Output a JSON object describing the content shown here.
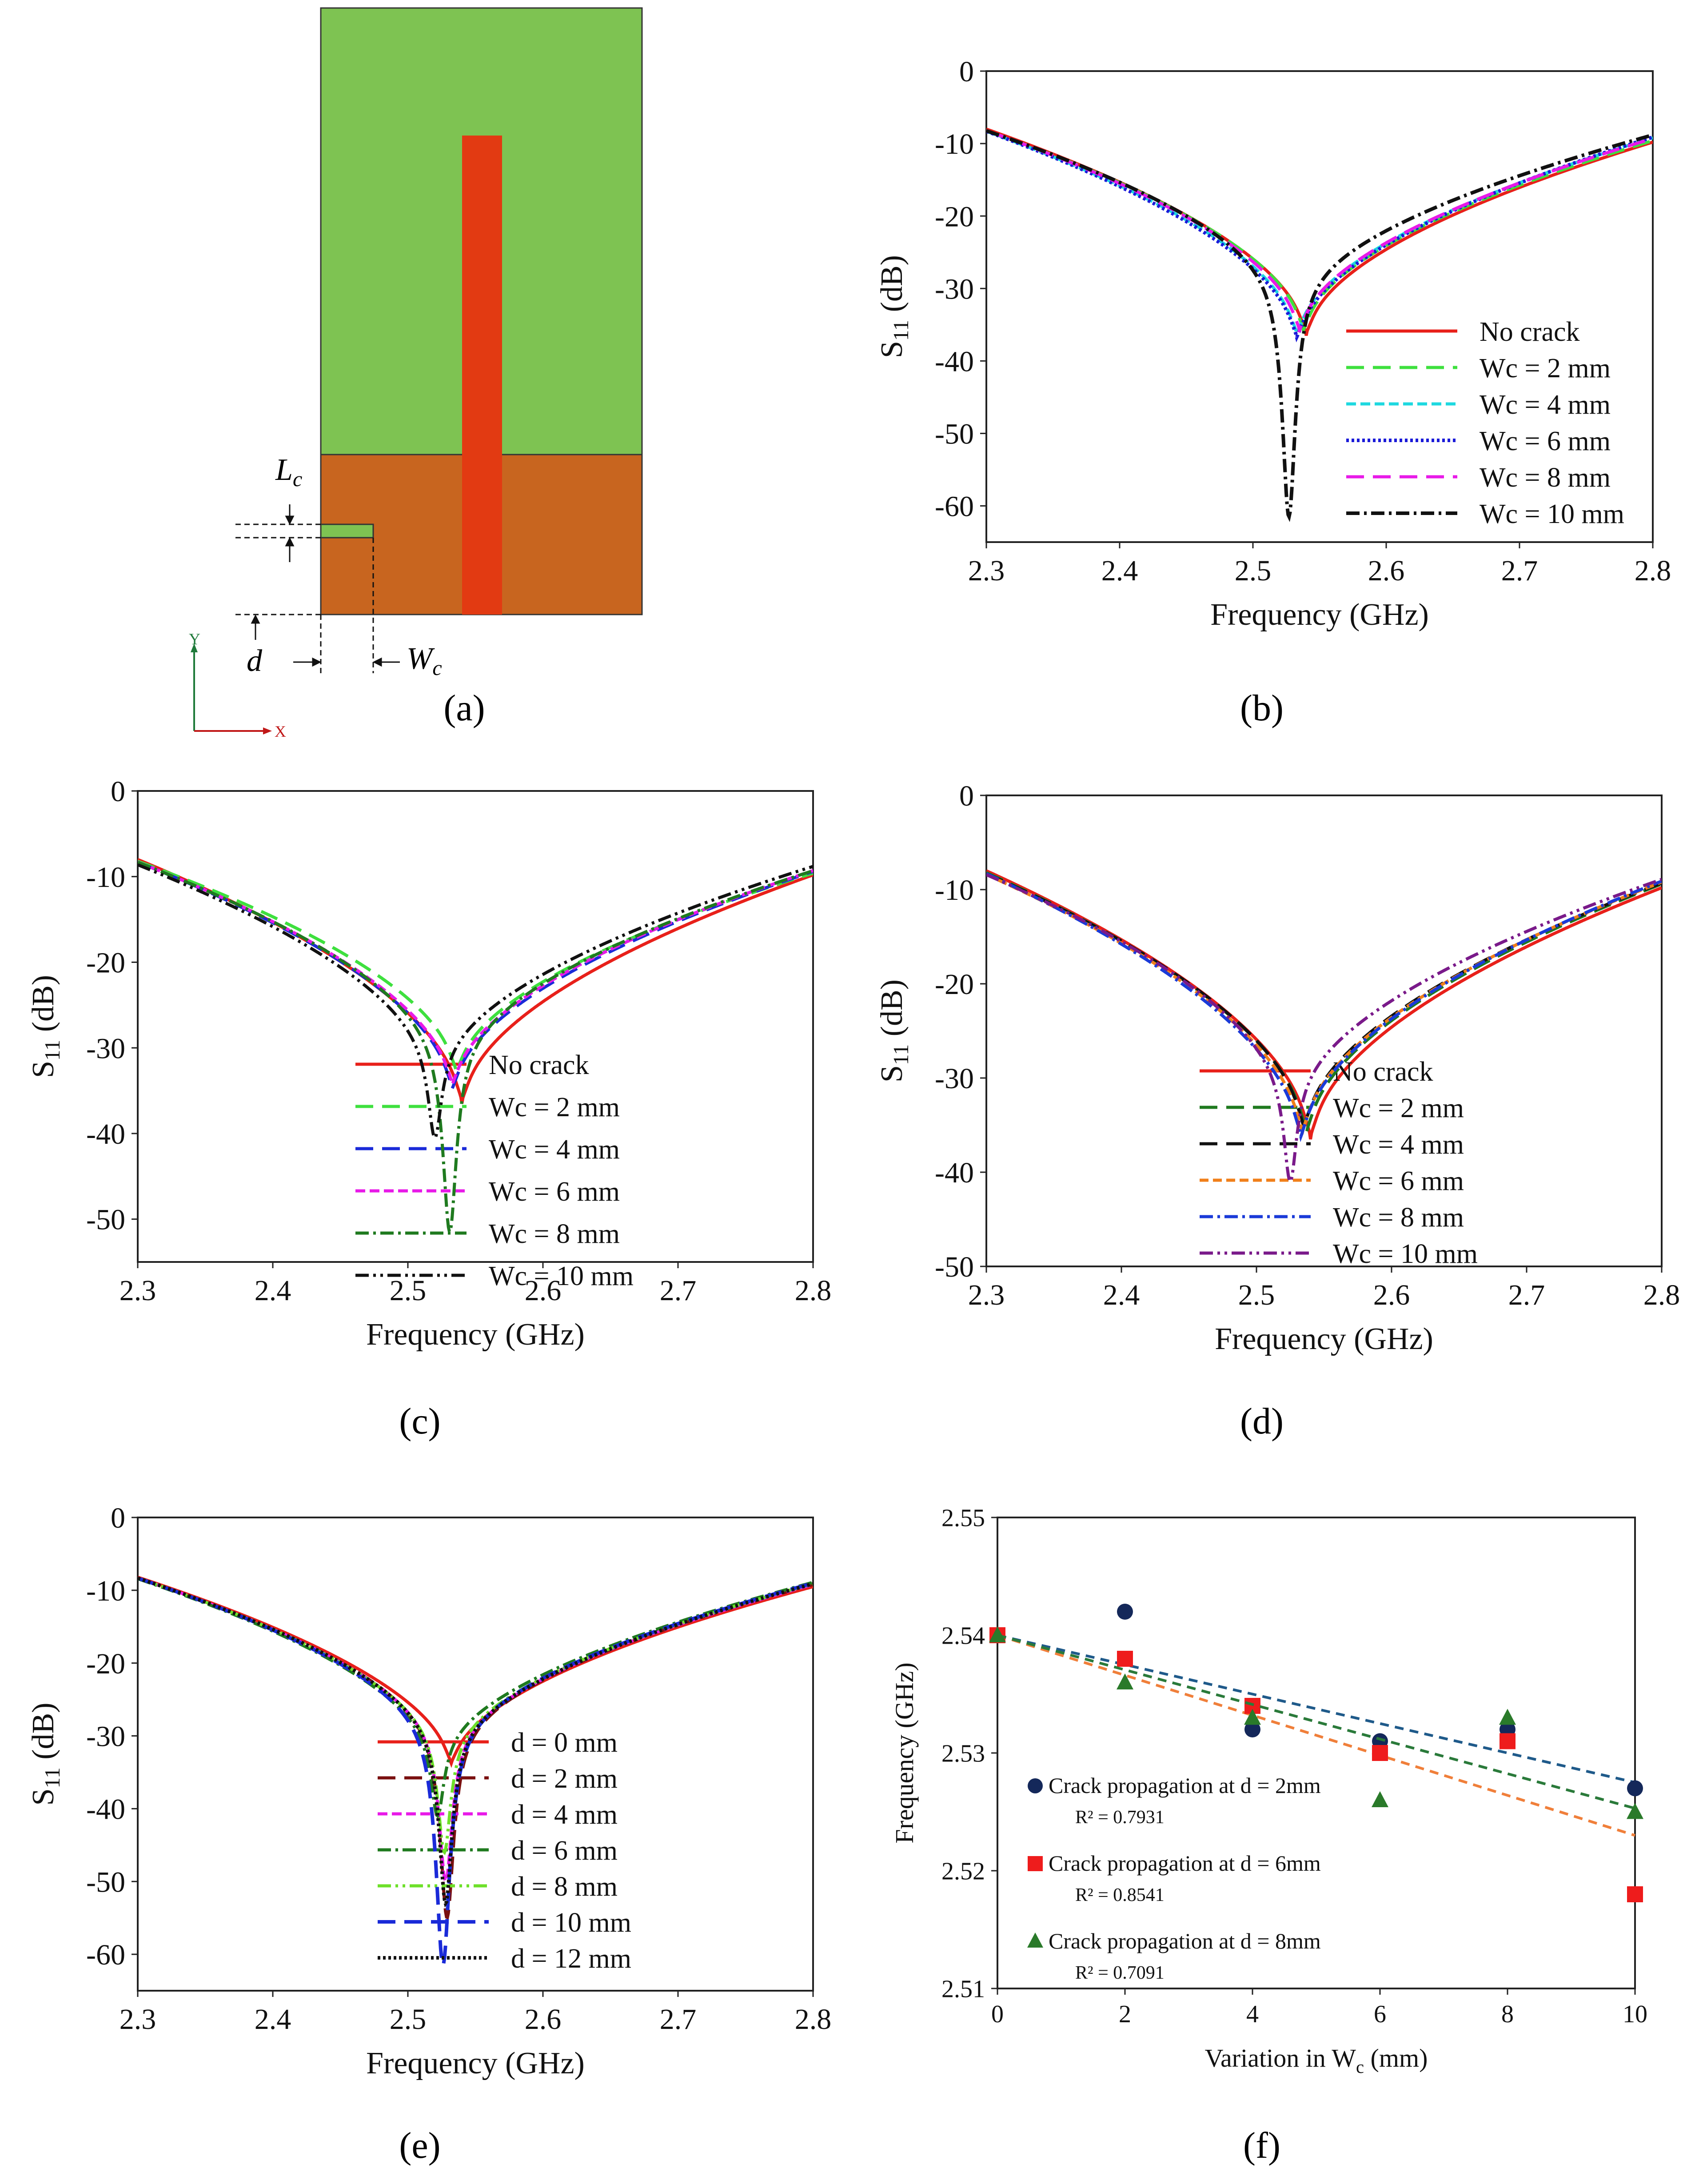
{
  "captions": {
    "a": "(a)",
    "b": "(b)",
    "c": "(c)",
    "d": "(d)",
    "e": "(e)",
    "f": "(f)"
  },
  "diagram": {
    "label_Lc": "L",
    "label_Lc_sub": "c",
    "label_d": "d",
    "label_Wc": "W",
    "label_Wc_sub": "c",
    "axis_y": "Y",
    "axis_x": "X",
    "colors": {
      "patch": "#7ec352",
      "ground": "#c8651f",
      "feed": "#e23a12",
      "slot": "#7ec352"
    }
  },
  "chart_data": [
    {
      "id": "b",
      "type": "line",
      "xlabel": "Frequency (GHz)",
      "ylabel": "S",
      "ylabel_sub": "11",
      "ylabel_unit": " (dB)",
      "xlim": [
        2.3,
        2.8
      ],
      "ylim": [
        -65,
        0
      ],
      "xticks": [
        "2.3",
        "2.4",
        "2.5",
        "2.6",
        "2.7",
        "2.8"
      ],
      "xtick_values": [
        2.3,
        2.4,
        2.5,
        2.6,
        2.7,
        2.8
      ],
      "yticks": [
        "0",
        "-10",
        "-20",
        "-30",
        "-40",
        "-50",
        "-60"
      ],
      "ytick_values": [
        0,
        -10,
        -20,
        -30,
        -40,
        -50,
        -60
      ],
      "legend_position": "right",
      "series": [
        {
          "name": "No crack",
          "f0": 2.54,
          "min": -36.5,
          "left": -8.0,
          "right": -9.8,
          "k": 1.0,
          "color": "#e8201a",
          "dash": "",
          "width": 7
        },
        {
          "name": "Wc = 2 mm",
          "f0": 2.538,
          "min": -36.0,
          "left": -8.2,
          "right": -9.6,
          "k": 1.0,
          "color": "#3ee03e",
          "dash": "40,20",
          "width": 7
        },
        {
          "name": "Wc = 4 mm",
          "f0": 2.533,
          "min": -36.5,
          "left": -8.3,
          "right": -9.2,
          "k": 1.05,
          "color": "#1ed8e0",
          "dash": "22,10",
          "width": 7
        },
        {
          "name": "Wc = 6 mm",
          "f0": 2.533,
          "min": -37.0,
          "left": -8.3,
          "right": -9.1,
          "k": 1.05,
          "color": "#1a1ad8",
          "dash": "6,6",
          "width": 8
        },
        {
          "name": "Wc = 8 mm",
          "f0": 2.535,
          "min": -36.0,
          "left": -8.2,
          "right": -9.3,
          "k": 1.0,
          "color": "#e81ae8",
          "dash": "40,20",
          "width": 7
        },
        {
          "name": "Wc = 10 mm",
          "f0": 2.527,
          "min": -61.5,
          "left": -8.2,
          "right": -8.8,
          "k": 1.25,
          "color": "#111111",
          "dash": "30,10,6,10",
          "width": 8
        }
      ]
    },
    {
      "id": "c",
      "type": "line",
      "xlabel": "Frequency (GHz)",
      "ylabel": "S",
      "ylabel_sub": "11",
      "ylabel_unit": " (dB)",
      "xlim": [
        2.3,
        2.8
      ],
      "ylim": [
        -55,
        0
      ],
      "xticks": [
        "2.3",
        "2.4",
        "2.5",
        "2.6",
        "2.7",
        "2.8"
      ],
      "xtick_values": [
        2.3,
        2.4,
        2.5,
        2.6,
        2.7,
        2.8
      ],
      "yticks": [
        "0",
        "-10",
        "-20",
        "-30",
        "-40",
        "-50"
      ],
      "ytick_values": [
        0,
        -10,
        -20,
        -30,
        -40,
        -50
      ],
      "legend_position": "right",
      "series": [
        {
          "name": "No crack",
          "f0": 2.54,
          "min": -36.5,
          "left": -8.0,
          "right": -9.8,
          "k": 1.0,
          "color": "#e8201a",
          "dash": "",
          "width": 7
        },
        {
          "name": "Wc = 2 mm",
          "f0": 2.536,
          "min": -33.0,
          "left": -8.2,
          "right": -9.6,
          "k": 1.0,
          "color": "#3ee03e",
          "dash": "40,20",
          "width": 7
        },
        {
          "name": "Wc = 4 mm",
          "f0": 2.533,
          "min": -35.0,
          "left": -8.3,
          "right": -9.4,
          "k": 1.0,
          "color": "#1a2ad8",
          "dash": "40,20",
          "width": 7
        },
        {
          "name": "Wc = 6 mm",
          "f0": 2.533,
          "min": -34.5,
          "left": -8.3,
          "right": -9.3,
          "k": 1.0,
          "color": "#e81ae8",
          "dash": "22,10",
          "width": 7
        },
        {
          "name": "Wc = 8 mm",
          "f0": 2.531,
          "min": -51.5,
          "left": -8.3,
          "right": -9.3,
          "k": 1.25,
          "color": "#1f7a1f",
          "dash": "30,10,6,10",
          "width": 7
        },
        {
          "name": "Wc = 10 mm",
          "f0": 2.52,
          "min": -40.5,
          "left": -8.6,
          "right": -8.8,
          "k": 1.15,
          "color": "#111111",
          "dash": "30,10,6,10,6,10",
          "width": 7
        }
      ]
    },
    {
      "id": "d",
      "type": "line",
      "xlabel": "Frequency (GHz)",
      "ylabel": "S",
      "ylabel_sub": "11",
      "ylabel_unit": " (dB)",
      "xlim": [
        2.3,
        2.8
      ],
      "ylim": [
        -50,
        0
      ],
      "xticks": [
        "2.3",
        "2.4",
        "2.5",
        "2.6",
        "2.7",
        "2.8"
      ],
      "xtick_values": [
        2.3,
        2.4,
        2.5,
        2.6,
        2.7,
        2.8
      ],
      "yticks": [
        "0",
        "-10",
        "-20",
        "-30",
        "-40",
        "-50"
      ],
      "ytick_values": [
        0,
        -10,
        -20,
        -30,
        -40,
        -50
      ],
      "legend_position": "right",
      "series": [
        {
          "name": "No crack",
          "f0": 2.54,
          "min": -36.5,
          "left": -8.0,
          "right": -9.8,
          "k": 1.0,
          "color": "#e8201a",
          "dash": "",
          "width": 7
        },
        {
          "name": "Wc = 2 mm",
          "f0": 2.537,
          "min": -36.0,
          "left": -8.2,
          "right": -9.4,
          "k": 1.0,
          "color": "#1f7a1f",
          "dash": "40,20",
          "width": 7
        },
        {
          "name": "Wc = 4 mm",
          "f0": 2.535,
          "min": -35.5,
          "left": -8.3,
          "right": -9.3,
          "k": 1.0,
          "color": "#111111",
          "dash": "40,20",
          "width": 7
        },
        {
          "name": "Wc = 6 mm",
          "f0": 2.534,
          "min": -36.0,
          "left": -8.4,
          "right": -9.2,
          "k": 1.0,
          "color": "#f07f1a",
          "dash": "20,10",
          "width": 7
        },
        {
          "name": "Wc = 8 mm",
          "f0": 2.533,
          "min": -36.5,
          "left": -8.3,
          "right": -9.1,
          "k": 1.0,
          "color": "#1a3ad8",
          "dash": "30,10,6,10",
          "width": 7
        },
        {
          "name": "Wc = 10 mm",
          "f0": 2.525,
          "min": -41.0,
          "left": -8.4,
          "right": -8.9,
          "k": 1.1,
          "color": "#7a1a8a",
          "dash": "30,10,6,10,6,10",
          "width": 7
        }
      ]
    },
    {
      "id": "e",
      "type": "line",
      "xlabel": "Frequency (GHz)",
      "ylabel": "S",
      "ylabel_sub": "11",
      "ylabel_unit": " (dB)",
      "xlim": [
        2.3,
        2.8
      ],
      "ylim": [
        -65,
        0
      ],
      "xticks": [
        "2.3",
        "2.4",
        "2.5",
        "2.6",
        "2.7",
        "2.8"
      ],
      "xtick_values": [
        2.3,
        2.4,
        2.5,
        2.6,
        2.7,
        2.8
      ],
      "yticks": [
        "0",
        "-10",
        "-20",
        "-30",
        "-40",
        "-50",
        "-60"
      ],
      "ytick_values": [
        0,
        -10,
        -20,
        -30,
        -40,
        -50,
        -60
      ],
      "legend_position": "right",
      "series": [
        {
          "name": "d = 0 mm",
          "f0": 2.532,
          "min": -34.0,
          "left": -8.2,
          "right": -9.5,
          "k": 1.0,
          "color": "#e8201a",
          "dash": "",
          "width": 7
        },
        {
          "name": "d = 2 mm",
          "f0": 2.529,
          "min": -55.0,
          "left": -8.3,
          "right": -9.2,
          "k": 1.25,
          "color": "#7a1010",
          "dash": "40,20",
          "width": 7
        },
        {
          "name": "d = 4 mm",
          "f0": 2.528,
          "min": -50.0,
          "left": -8.3,
          "right": -9.2,
          "k": 1.2,
          "color": "#e81ae8",
          "dash": "22,10",
          "width": 7
        },
        {
          "name": "d = 6 mm",
          "f0": 2.522,
          "min": -41.0,
          "left": -8.4,
          "right": -8.9,
          "k": 1.1,
          "color": "#1f7a1f",
          "dash": "30,10,6,10",
          "width": 7
        },
        {
          "name": "d = 8 mm",
          "f0": 2.527,
          "min": -46.0,
          "left": -8.3,
          "right": -9.1,
          "k": 1.15,
          "color": "#6ee02a",
          "dash": "30,10,6,10,6,10",
          "width": 7
        },
        {
          "name": "d = 10 mm",
          "f0": 2.526,
          "min": -61.5,
          "left": -8.3,
          "right": -9.0,
          "k": 1.3,
          "color": "#1a2ad8",
          "dash": "40,20",
          "width": 8
        },
        {
          "name": "d = 12 mm",
          "f0": 2.528,
          "min": -53.0,
          "left": -8.3,
          "right": -9.1,
          "k": 1.2,
          "color": "#111111",
          "dash": "6,6",
          "width": 8
        }
      ]
    },
    {
      "id": "f",
      "type": "scatter",
      "xlabel": "Variation in W",
      "xlabel_sub": "c",
      "xlabel_unit": " (mm)",
      "ylabel": "Frequency (GHz)",
      "xlim": [
        0,
        10
      ],
      "ylim": [
        2.51,
        2.55
      ],
      "xticks": [
        "0",
        "2",
        "4",
        "6",
        "8",
        "10"
      ],
      "xtick_values": [
        0,
        2,
        4,
        6,
        8,
        10
      ],
      "yticks": [
        "2.51",
        "2.52",
        "2.53",
        "2.54",
        "2.55"
      ],
      "ytick_values": [
        2.51,
        2.52,
        2.53,
        2.54,
        2.55
      ],
      "series": [
        {
          "name": "Crack propagation at d = 2mm",
          "r2": "R² = 0.7931",
          "marker": "circle",
          "color": "#14285a",
          "trend_color": "#1f5a8a",
          "x": [
            0,
            2,
            4,
            6,
            8,
            10
          ],
          "y": [
            2.54,
            2.542,
            2.532,
            2.531,
            2.532,
            2.527
          ],
          "trend": [
            2.54,
            2.5275
          ]
        },
        {
          "name": "Crack propagation at d = 6mm",
          "r2": "R² = 0.8541",
          "marker": "square",
          "color": "#ee1c1c",
          "trend_color": "#f07f3a",
          "x": [
            0,
            2,
            4,
            6,
            8,
            10
          ],
          "y": [
            2.54,
            2.538,
            2.534,
            2.53,
            2.531,
            2.518
          ],
          "trend": [
            2.54,
            2.523
          ]
        },
        {
          "name": "Crack propagation at d = 8mm",
          "r2": "R² = 0.7091",
          "marker": "triangle",
          "color": "#2a7a2a",
          "trend_color": "#2a7a3a",
          "x": [
            0,
            2,
            4,
            6,
            8,
            10
          ],
          "y": [
            2.54,
            2.536,
            2.533,
            2.526,
            2.533,
            2.525
          ],
          "trend": [
            2.54,
            2.5253
          ]
        }
      ]
    }
  ]
}
